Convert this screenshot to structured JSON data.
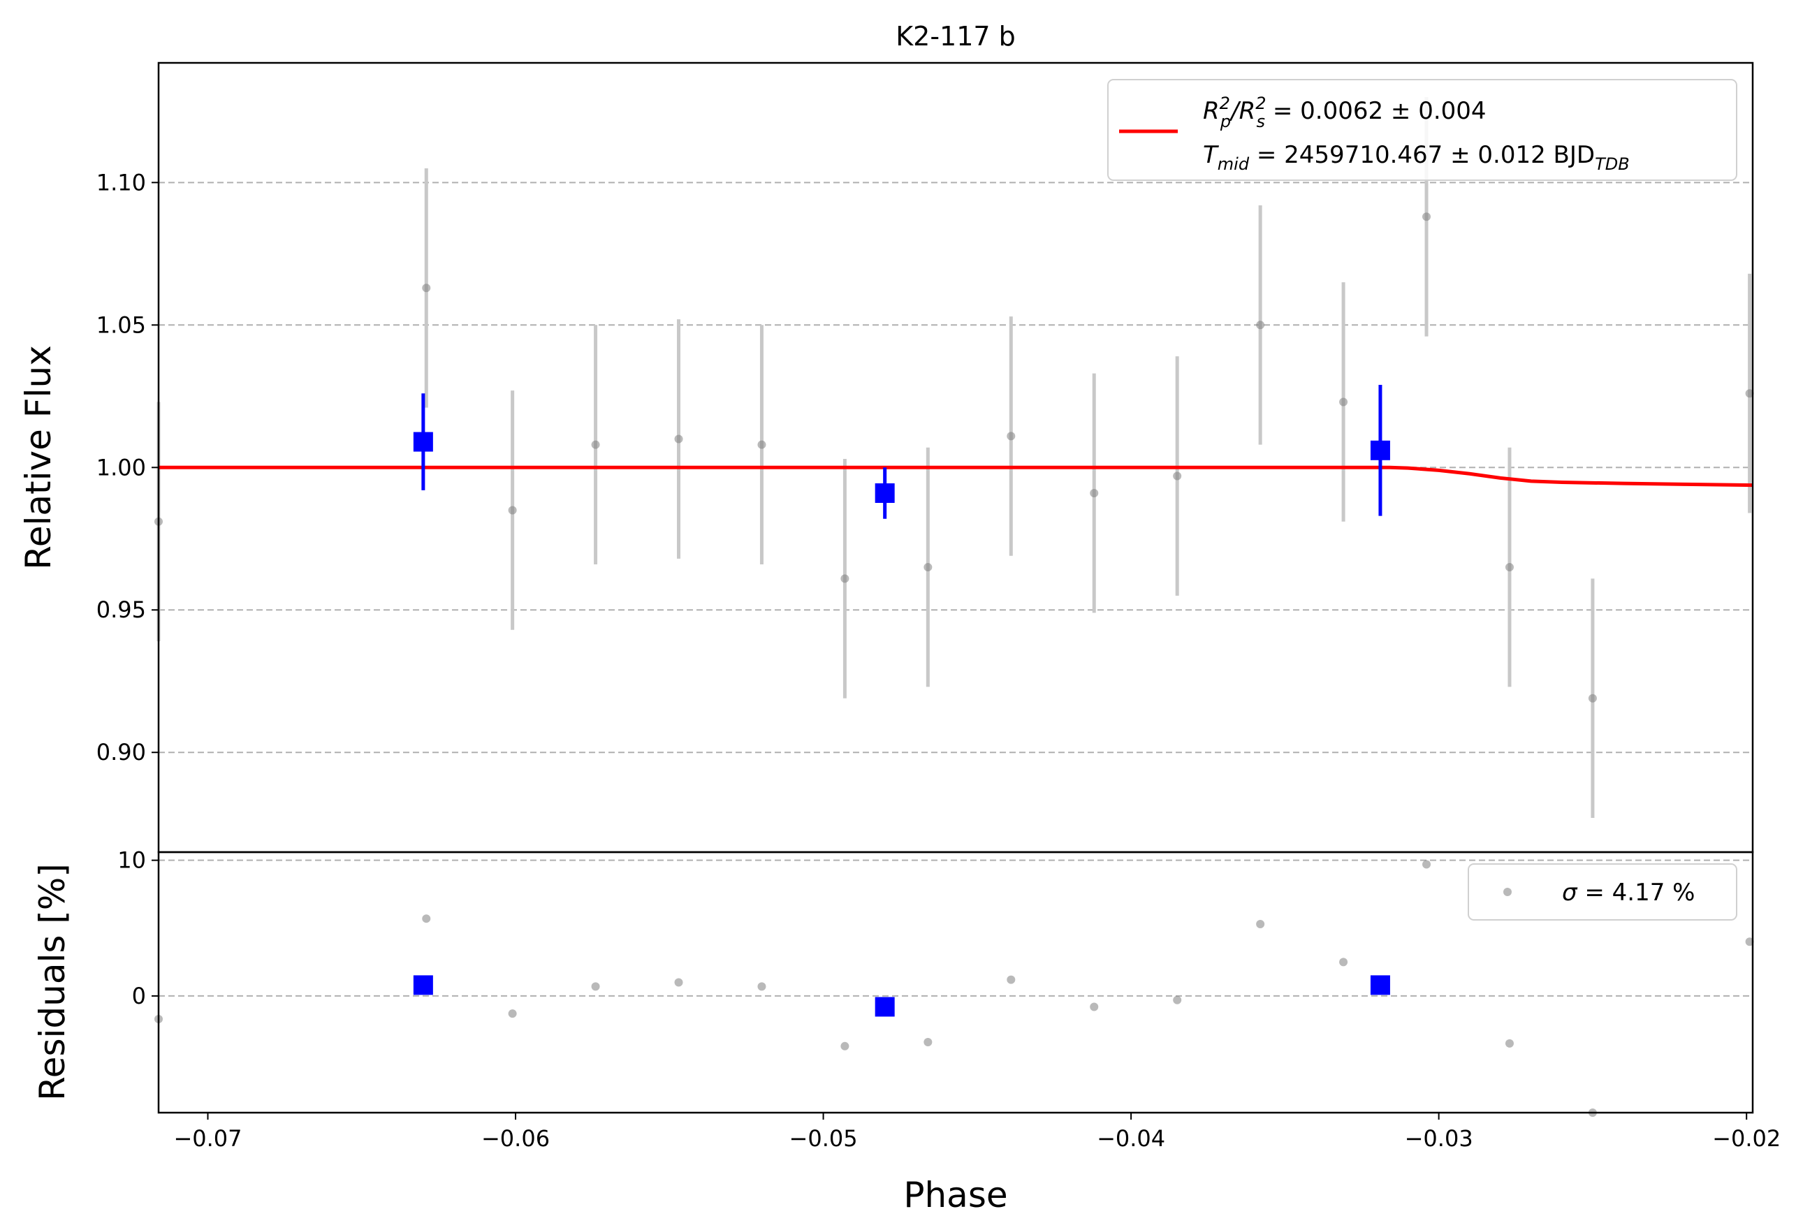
{
  "chart_data": [
    {
      "type": "scatter",
      "panel": "main",
      "title": "K2-117 b",
      "ylabel": "Relative Flux",
      "xlim": [
        -0.0716,
        -0.0198
      ],
      "ylim": [
        0.865,
        1.142
      ],
      "grid": "horizontal dashed",
      "yticks": [
        0.9,
        0.95,
        1.0,
        1.05,
        1.1
      ],
      "ytick_labels": [
        "0.90",
        "0.95",
        "1.00",
        "1.05",
        "1.10"
      ],
      "colors": {
        "raw": "#808080",
        "raw_err": "#c8c8c8",
        "binned": "#0000ff",
        "model": "#ff0000",
        "grid": "#b0b0b0"
      },
      "legend": {
        "position": "top-right",
        "line1": {
          "prefix": "R",
          "sup1": "2",
          "sub1": "p",
          "mid": "/R",
          "sup2": "2",
          "sub2": "s",
          "suffix": " = 0.0062 ± 0.004"
        },
        "line2": {
          "prefix": "T",
          "sub": "mid",
          "middle": " = 2459710.467 ± 0.012 BJD",
          "unit_sub": "TDB"
        }
      },
      "series": [
        {
          "kind": "raw",
          "x": [
            -0.0716,
            -0.0629,
            -0.0601,
            -0.0574,
            -0.0547,
            -0.052,
            -0.0493,
            -0.0466,
            -0.0439,
            -0.0412,
            -0.0385,
            -0.0358,
            -0.0331,
            -0.0304,
            -0.0277,
            -0.025,
            -0.0199
          ],
          "y": [
            0.981,
            1.063,
            0.985,
            1.008,
            1.01,
            1.008,
            0.961,
            0.965,
            1.011,
            0.991,
            0.997,
            1.05,
            1.023,
            1.088,
            0.965,
            0.919,
            1.026
          ],
          "yerr": [
            0.042,
            0.042,
            0.042,
            0.042,
            0.042,
            0.042,
            0.042,
            0.042,
            0.042,
            0.042,
            0.042,
            0.042,
            0.042,
            0.042,
            0.042,
            0.042,
            0.042
          ]
        },
        {
          "kind": "binned",
          "x": [
            -0.063,
            -0.048,
            -0.0319
          ],
          "y": [
            1.009,
            0.991,
            1.006
          ],
          "yerr": [
            0.017,
            0.009,
            0.023
          ]
        },
        {
          "kind": "model",
          "x": [
            -0.0716,
            -0.0316,
            -0.031,
            -0.03,
            -0.029,
            -0.028,
            -0.027,
            -0.026,
            -0.024,
            -0.022,
            -0.0198
          ],
          "y": [
            1.0,
            1.0,
            0.9998,
            0.999,
            0.9978,
            0.9963,
            0.9952,
            0.9948,
            0.9944,
            0.9941,
            0.9938
          ]
        }
      ]
    },
    {
      "type": "scatter",
      "panel": "residuals",
      "xlabel": "Phase",
      "ylabel": "Residuals [%]",
      "xlim": [
        -0.0716,
        -0.0198
      ],
      "ylim": [
        -8.6,
        10.6
      ],
      "grid": "horizontal dashed",
      "yticks": [
        0,
        10
      ],
      "ytick_labels": [
        "0",
        "10"
      ],
      "xticks": [
        -0.07,
        -0.06,
        -0.05,
        -0.04,
        -0.03,
        -0.02
      ],
      "xtick_labels": [
        "−0.07",
        "−0.06",
        "−0.05",
        "−0.04",
        "−0.03",
        "−0.02"
      ],
      "legend": {
        "position": "top-right",
        "symbol": "σ",
        "text": " = 4.17 %"
      },
      "series": [
        {
          "kind": "raw",
          "x": [
            -0.0716,
            -0.0629,
            -0.0601,
            -0.0574,
            -0.0547,
            -0.052,
            -0.0493,
            -0.0466,
            -0.0439,
            -0.0412,
            -0.0385,
            -0.0358,
            -0.0331,
            -0.0304,
            -0.0277,
            -0.025,
            -0.0199
          ],
          "y": [
            -1.7,
            5.7,
            -1.3,
            0.7,
            1.0,
            0.7,
            -3.7,
            -3.4,
            1.2,
            -0.8,
            -0.3,
            5.3,
            2.5,
            9.7,
            -3.5,
            -8.6,
            4.0
          ]
        },
        {
          "kind": "binned",
          "x": [
            -0.063,
            -0.048,
            -0.0319
          ],
          "y": [
            0.8,
            -0.8,
            0.8
          ]
        }
      ]
    }
  ]
}
